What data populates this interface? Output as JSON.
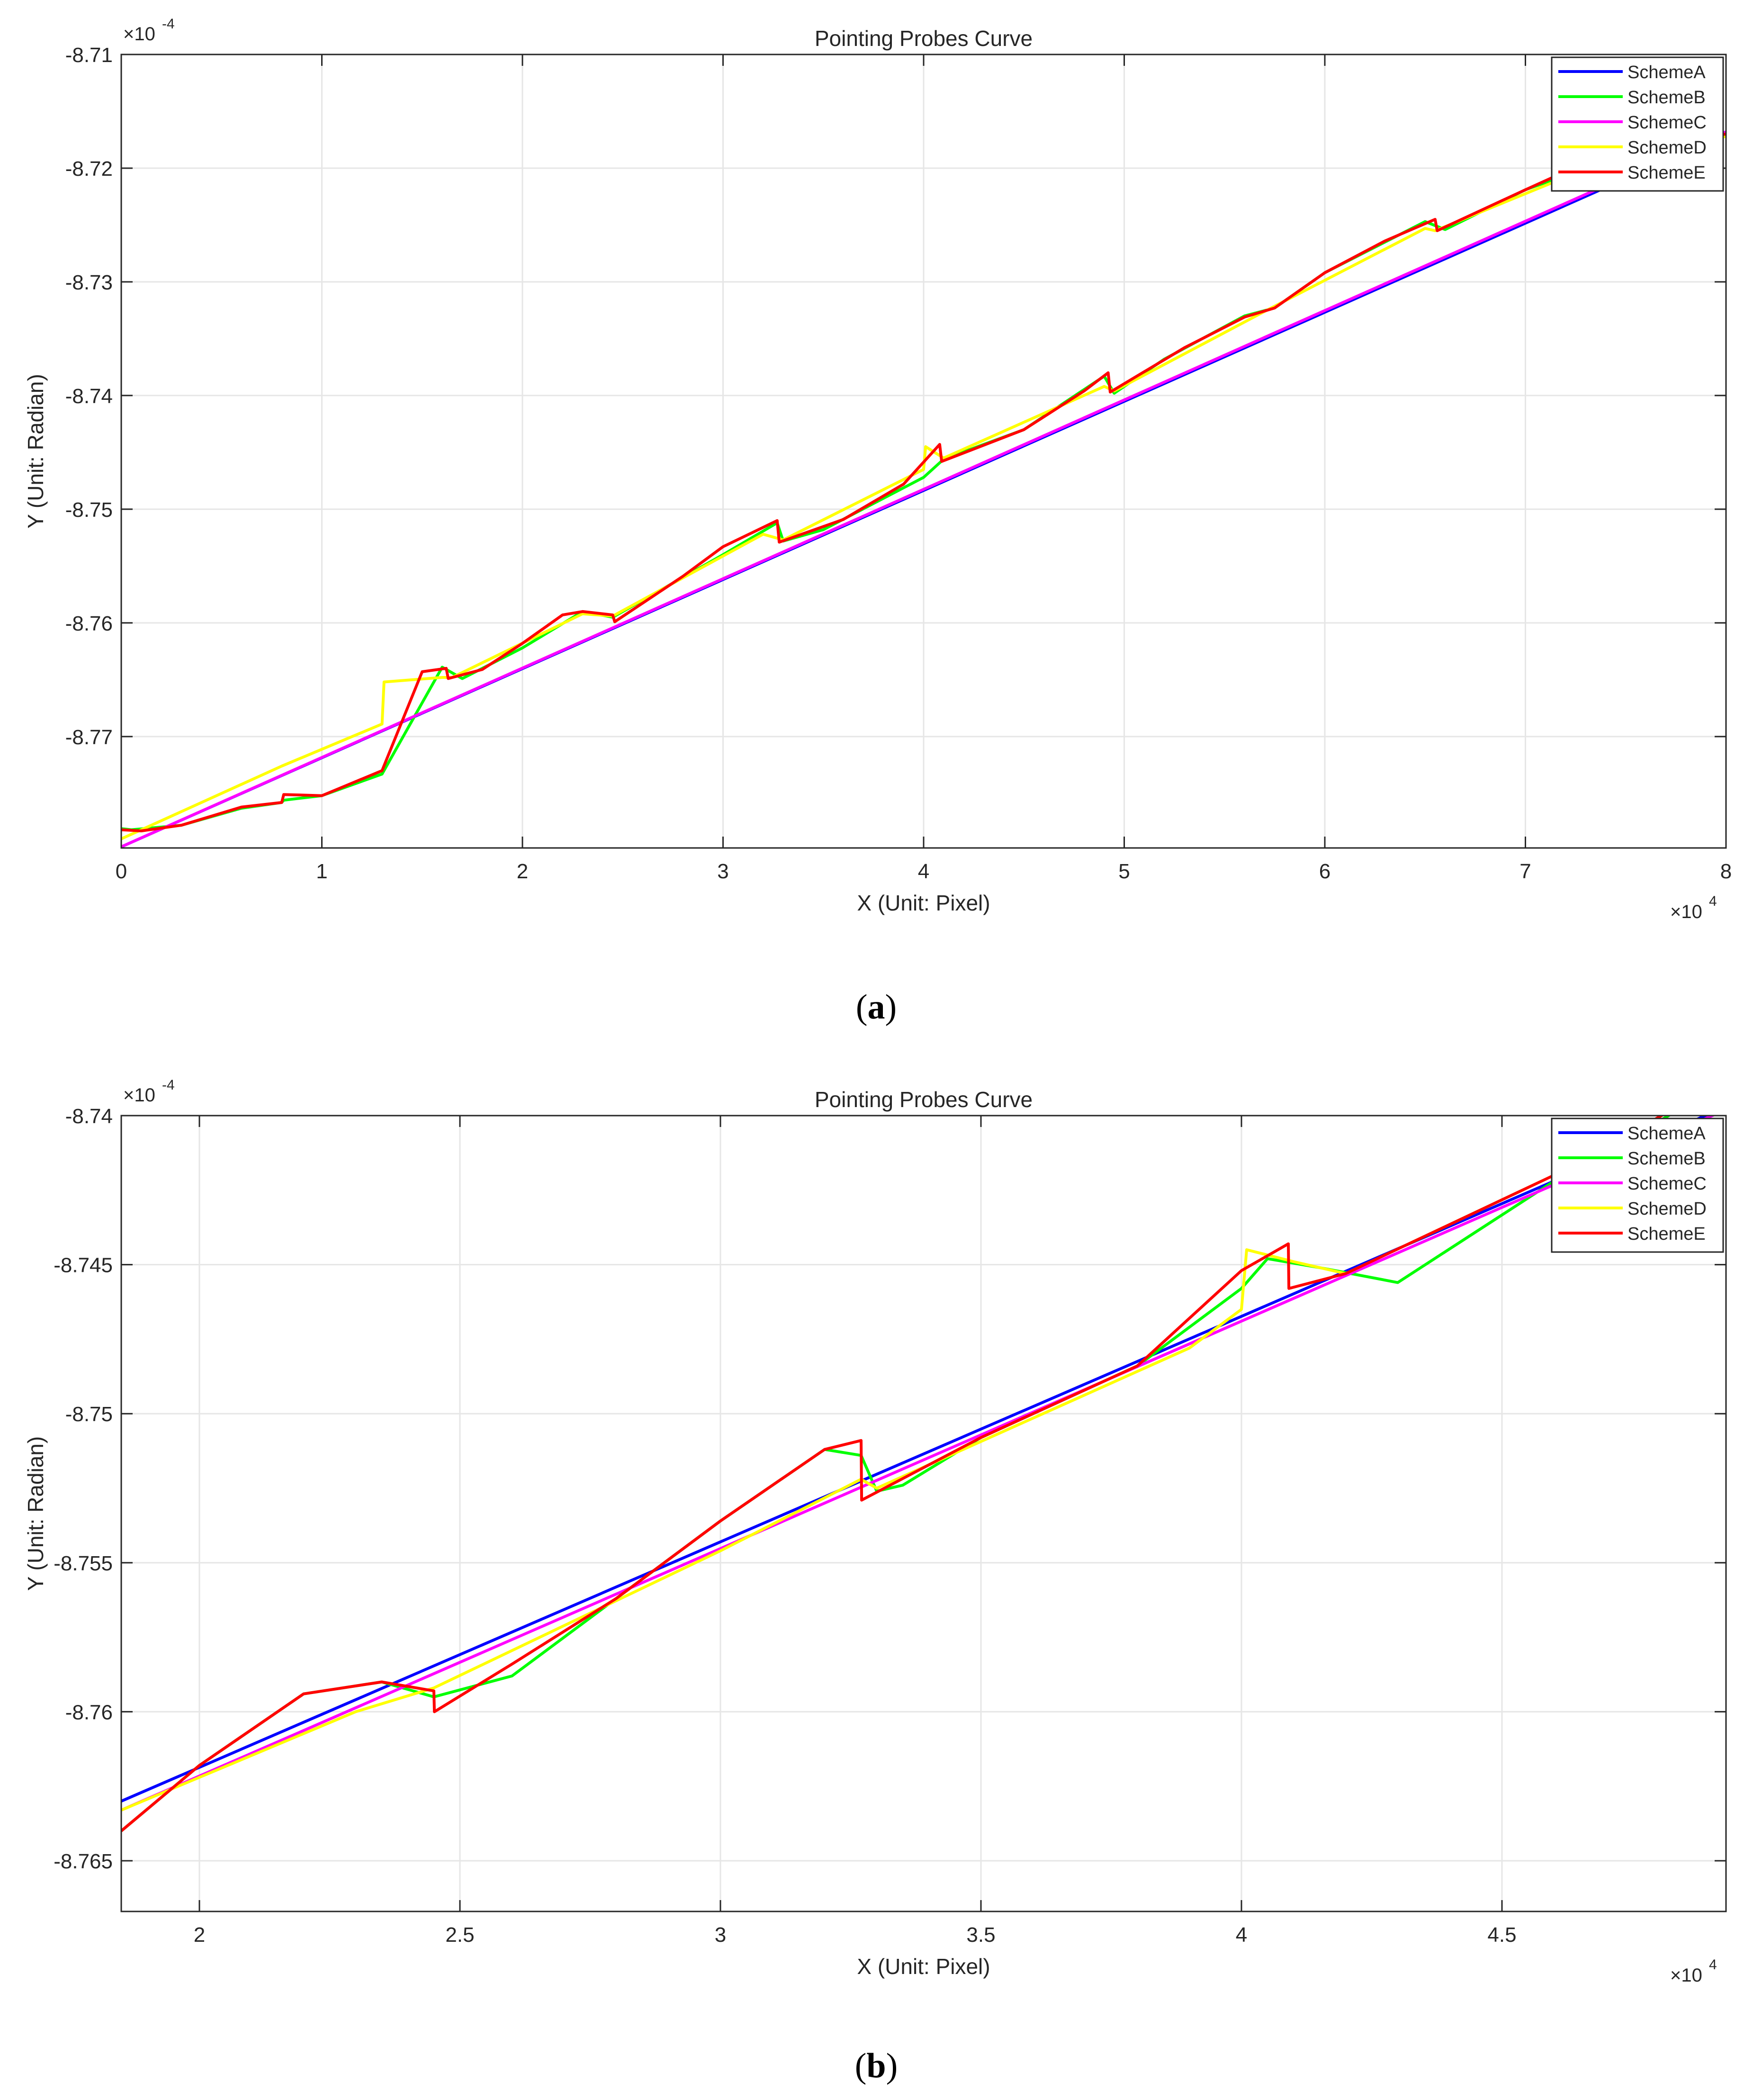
{
  "colors": {
    "SchemeA": "#0000ff",
    "SchemeB": "#00ff00",
    "SchemeC": "#ff00ff",
    "SchemeD": "#ffff00",
    "SchemeE": "#ff0000",
    "grid": "#e6e6e6",
    "axis": "#262626"
  },
  "chart_data": [
    {
      "type": "line",
      "panel_label": "a",
      "title": "Pointing Probes Curve",
      "xlabel": "X (Unit: Pixel)",
      "ylabel": "Y (Unit: Radian)",
      "x_multiplier": "×10",
      "x_exponent": "4",
      "y_multiplier": "×10",
      "y_exponent": "-4",
      "xlim": [
        0,
        8
      ],
      "ylim": [
        -8.7798,
        -8.71
      ],
      "xticks": [
        0,
        1,
        2,
        3,
        4,
        5,
        6,
        7,
        8
      ],
      "xtick_labels": [
        "0",
        "1",
        "2",
        "3",
        "4",
        "5",
        "6",
        "7",
        "8"
      ],
      "yticks": [
        -8.77,
        -8.76,
        -8.75,
        -8.74,
        -8.73,
        -8.72,
        -8.71
      ],
      "ytick_labels": [
        "-8.77",
        "-8.76",
        "-8.75",
        "-8.74",
        "-8.73",
        "-8.72",
        "-8.71"
      ],
      "grid": true,
      "legend_position": "top-right",
      "legend": [
        "SchemeA",
        "SchemeB",
        "SchemeC",
        "SchemeD",
        "SchemeE"
      ],
      "series": [
        {
          "name": "SchemeA",
          "x": [
            0,
            8
          ],
          "y": [
            -8.7797,
            -8.717
          ]
        },
        {
          "name": "SchemeB",
          "x": [
            0,
            0.05,
            0.3,
            0.6,
            0.8,
            0.81,
            1.0,
            1.3,
            1.6,
            1.7,
            2.0,
            2.3,
            2.45,
            3.0,
            3.27,
            3.3,
            3.5,
            4.0,
            4.1,
            4.5,
            4.9,
            4.95,
            5.2,
            5.6,
            5.75,
            6.0,
            6.5,
            6.6,
            7.0,
            7.3,
            8.0
          ],
          "y": [
            -8.7781,
            -8.7782,
            -8.7778,
            -8.7763,
            -8.7758,
            -8.7756,
            -8.7752,
            -8.7733,
            -8.7639,
            -8.7649,
            -8.7622,
            -8.759,
            -8.7595,
            -8.754,
            -8.7512,
            -8.7528,
            -8.7518,
            -8.7472,
            -8.7456,
            -8.743,
            -8.7383,
            -8.7398,
            -8.7368,
            -8.733,
            -8.7323,
            -8.7292,
            -8.7247,
            -8.7254,
            -8.7219,
            -8.72,
            -8.717
          ]
        },
        {
          "name": "SchemeC",
          "x": [
            0,
            8
          ],
          "y": [
            -8.7797,
            -8.7168
          ]
        },
        {
          "name": "SchemeD",
          "x": [
            0,
            0.8,
            1.3,
            1.31,
            1.6,
            1.65,
            2.3,
            2.45,
            3.2,
            3.3,
            4.0,
            4.01,
            4.1,
            4.9,
            4.95,
            5.7,
            6.5,
            6.55,
            7.2,
            8.0
          ],
          "y": [
            -8.779,
            -8.7726,
            -8.7689,
            -8.7652,
            -8.7648,
            -8.7648,
            -8.7592,
            -8.7594,
            -8.7522,
            -8.7527,
            -8.7465,
            -8.7445,
            -8.7455,
            -8.7392,
            -8.7396,
            -8.7326,
            -8.7253,
            -8.7255,
            -8.7208,
            -8.7172
          ]
        },
        {
          "name": "SchemeE",
          "x": [
            0,
            0.1,
            0.3,
            0.6,
            0.8,
            0.81,
            1.0,
            1.3,
            1.5,
            1.62,
            1.63,
            1.8,
            2.0,
            2.2,
            2.3,
            2.45,
            2.46,
            2.8,
            3.0,
            3.27,
            3.28,
            3.6,
            3.9,
            4.08,
            4.09,
            4.5,
            4.8,
            4.92,
            4.93,
            5.3,
            5.6,
            5.75,
            6.0,
            6.3,
            6.55,
            6.56,
            7.0,
            7.3,
            7.6,
            8.0
          ],
          "y": [
            -8.7782,
            -8.7783,
            -8.7778,
            -8.7762,
            -8.7758,
            -8.7751,
            -8.7752,
            -8.773,
            -8.7643,
            -8.764,
            -8.7649,
            -8.7641,
            -8.7618,
            -8.7593,
            -8.759,
            -8.7593,
            -8.7599,
            -8.7559,
            -8.7533,
            -8.751,
            -8.7529,
            -8.7509,
            -8.7478,
            -8.7443,
            -8.7458,
            -8.743,
            -8.7396,
            -8.738,
            -8.7397,
            -8.7358,
            -8.7331,
            -8.7323,
            -8.7292,
            -8.7264,
            -8.7245,
            -8.7255,
            -8.7219,
            -8.7195,
            -8.718,
            -8.717
          ]
        }
      ]
    },
    {
      "type": "line",
      "panel_label": "b",
      "title": "Pointing Probes Curve",
      "xlabel": "X (Unit: Pixel)",
      "ylabel": "Y (Unit: Radian)",
      "x_multiplier": "×10",
      "x_exponent": "4",
      "y_multiplier": "×10",
      "y_exponent": "-4",
      "xlim": [
        1.85,
        4.93
      ],
      "ylim": [
        -8.7667,
        -8.74
      ],
      "xticks": [
        2,
        2.5,
        3,
        3.5,
        4,
        4.5
      ],
      "xtick_labels": [
        "2",
        "2.5",
        "3",
        "3.5",
        "4",
        "4.5"
      ],
      "yticks": [
        -8.765,
        -8.76,
        -8.755,
        -8.75,
        -8.745,
        -8.74
      ],
      "ytick_labels": [
        "-8.765",
        "-8.76",
        "-8.755",
        "-8.75",
        "-8.745",
        "-8.74"
      ],
      "grid": true,
      "legend_position": "top-right",
      "legend": [
        "SchemeA",
        "SchemeB",
        "SchemeC",
        "SchemeD",
        "SchemeE"
      ],
      "series": [
        {
          "name": "SchemeA",
          "x": [
            1.85,
            4.93
          ],
          "y": [
            -8.763,
            -8.7397
          ]
        },
        {
          "name": "SchemeB",
          "x": [
            1.85,
            2.0,
            2.2,
            2.35,
            2.45,
            2.6,
            2.8,
            3.0,
            3.2,
            3.27,
            3.3,
            3.35,
            3.5,
            3.8,
            4.0,
            4.05,
            4.15,
            4.3,
            4.6,
            4.93
          ],
          "y": [
            -8.764,
            -8.7618,
            -8.7594,
            -8.759,
            -8.7595,
            -8.7588,
            -8.7562,
            -8.7536,
            -8.7512,
            -8.7514,
            -8.7526,
            -8.7524,
            -8.7508,
            -8.7484,
            -8.7458,
            -8.7448,
            -8.7451,
            -8.7456,
            -8.7422,
            -8.7389
          ]
        },
        {
          "name": "SchemeC",
          "x": [
            1.85,
            4.93
          ],
          "y": [
            -8.7633,
            -8.7398
          ]
        },
        {
          "name": "SchemeD",
          "x": [
            1.85,
            2.3,
            2.45,
            3.0,
            3.27,
            3.3,
            3.9,
            4.0,
            4.01,
            4.1,
            4.2,
            4.6,
            4.93
          ],
          "y": [
            -8.7633,
            -8.76,
            -8.7592,
            -8.7546,
            -8.7522,
            -8.7525,
            -8.7478,
            -8.7465,
            -8.7445,
            -8.7449,
            -8.7453,
            -8.742,
            -8.7388
          ]
        },
        {
          "name": "SchemeE",
          "x": [
            1.85,
            2.0,
            2.2,
            2.35,
            2.45,
            2.451,
            2.6,
            2.8,
            3.0,
            3.2,
            3.27,
            3.271,
            3.5,
            3.8,
            4.0,
            4.09,
            4.091,
            4.2,
            4.6,
            4.93
          ],
          "y": [
            -8.764,
            -8.7618,
            -8.7594,
            -8.759,
            -8.7593,
            -8.76,
            -8.7584,
            -8.7562,
            -8.7536,
            -8.7512,
            -8.7509,
            -8.7529,
            -8.7508,
            -8.7484,
            -8.7452,
            -8.7443,
            -8.7458,
            -8.7453,
            -8.742,
            -8.7388
          ]
        }
      ]
    }
  ]
}
